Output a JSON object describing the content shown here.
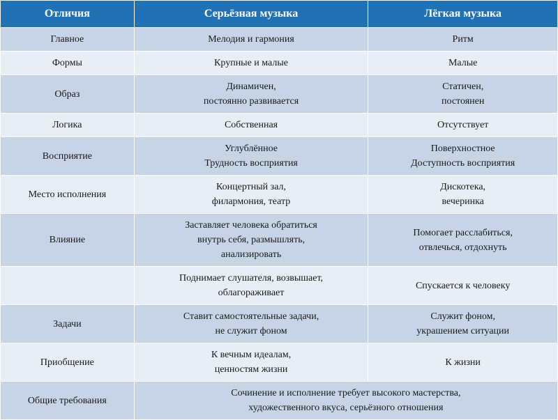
{
  "header": {
    "c1": "Отличия",
    "c2": "Серьёзная музыка",
    "c3": "Лёгкая музыка"
  },
  "rows": [
    {
      "band": "a",
      "c1": "Главное",
      "c2": "Мелодия и гармония",
      "c3": "Ритм"
    },
    {
      "band": "b",
      "c1": "Формы",
      "c2": "Крупные и малые",
      "c3": "Малые"
    },
    {
      "band": "a",
      "c1": "Образ",
      "c2": "Динамичен,\nпостоянно развивается",
      "c3": "Статичен,\nпостоянен"
    },
    {
      "band": "b",
      "c1": "Логика",
      "c2": "Собственная",
      "c3": "Отсутствует"
    },
    {
      "band": "a",
      "c1": "Восприятие",
      "c2": "Углублённое\nТрудность восприятия",
      "c3": "Поверхностное\nДоступность восприятия"
    },
    {
      "band": "b",
      "c1": "Место исполнения",
      "c2": "Концертный зал,\nфилармония, театр",
      "c3": "Дискотека,\nвечеринка"
    },
    {
      "band": "a",
      "c1": "Влияние",
      "c2": "Заставляет человека обратиться\nвнутрь себя, размышлять,\nанализировать",
      "c3": "Помогает расслабиться,\nотвлечься, отдохнуть"
    },
    {
      "band": "b",
      "c1": "",
      "c2": "Поднимает слушателя, возвышает,\nоблагораживает",
      "c3": "Спускается к человеку"
    },
    {
      "band": "a",
      "c1": "Задачи",
      "c2": "Ставит самостоятельные задачи,\nне служит фоном",
      "c3": "Служит фоном,\nукрашением ситуации"
    },
    {
      "band": "b",
      "c1": "Приобщение",
      "c2": "К вечным идеалам,\nценностям жизни",
      "c3": "К жизни"
    },
    {
      "band": "a",
      "c1": "Общие требования",
      "span": true,
      "c2": "Сочинение и исполнение требует высокого мастерства,\nхудожественного вкуса, серьёзного отношения"
    }
  ],
  "style": {
    "header_bg": "#2171b5",
    "header_fg": "#ffffff",
    "band_a": "#c6d4e6",
    "band_b": "#e8eef5",
    "text_color": "#1a1a1a",
    "header_fontsize": 16,
    "cell_fontsize": 14
  }
}
